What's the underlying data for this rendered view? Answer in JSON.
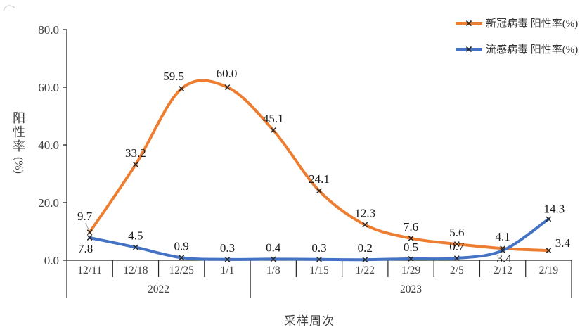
{
  "axes": {
    "y_title": "阳性率",
    "y_unit": "(%)",
    "x_title": "采样周次"
  },
  "legend": {
    "items": [
      {
        "label": "新冠病毒 阳性率(%)",
        "color": "#ED7D31"
      },
      {
        "label": "流感病毒 阳性率(%)",
        "color": "#4472C4"
      }
    ]
  },
  "chart_data": {
    "type": "line",
    "title": "",
    "xlabel": "采样周次",
    "ylabel": "阳性率(%)",
    "ylim": [
      0,
      80
    ],
    "ytick_labels": [
      "0.0",
      "20.0",
      "40.0",
      "60.0",
      "80.0"
    ],
    "yticks": [
      0,
      20,
      40,
      60,
      80
    ],
    "grid": false,
    "smooth": true,
    "marker": "x",
    "marker_color": "#262626",
    "legend_position": "top-right",
    "categories": [
      "12/11",
      "12/18",
      "12/25",
      "1/1",
      "1/8",
      "1/15",
      "1/22",
      "1/29",
      "2/5",
      "2/12",
      "2/19"
    ],
    "year_groups": [
      {
        "label": "2022",
        "from": 0,
        "to": 3
      },
      {
        "label": "2023",
        "from": 4,
        "to": 10
      }
    ],
    "series": [
      {
        "name": "新冠病毒 阳性率(%)",
        "color": "#ED7D31",
        "values": [
          9.7,
          33.2,
          59.5,
          60.0,
          45.1,
          24.1,
          12.3,
          7.6,
          5.6,
          4.1,
          3.4
        ]
      },
      {
        "name": "流感病毒 阳性率(%)",
        "color": "#4472C4",
        "values": [
          7.8,
          4.5,
          0.9,
          0.3,
          0.4,
          0.3,
          0.2,
          0.5,
          0.7,
          3.4,
          14.3
        ]
      }
    ]
  }
}
